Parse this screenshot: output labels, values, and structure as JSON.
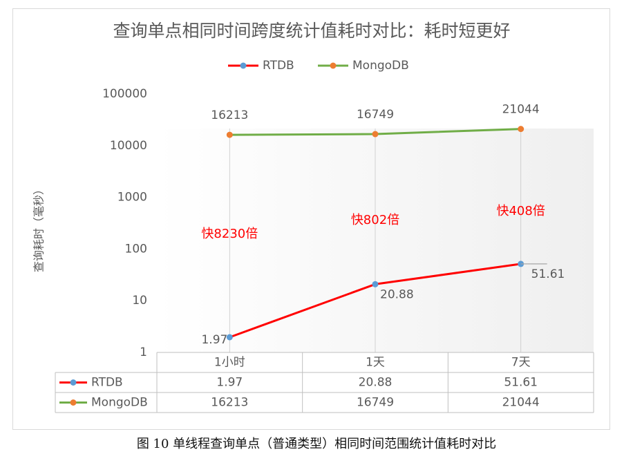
{
  "caption": "图 10 单线程查询单点（普通类型）相同时间范围统计值耗时对比",
  "colors": {
    "rtdb_line": "#ff0000",
    "rtdb_marker": "#5b9bd5",
    "mongo_line": "#70ad47",
    "mongo_marker": "#ed7d31",
    "axis_text": "#595959",
    "annotation": "#ff0000"
  },
  "chart_data": {
    "type": "line",
    "title": "查询单点相同时间跨度统计值耗时对比：耗时短更好",
    "ylabel": "查询耗时（毫秒）",
    "xlabel": "",
    "y_scale": "log",
    "ylim": [
      1,
      100000
    ],
    "yticks": [
      "1",
      "10",
      "100",
      "1000",
      "10000",
      "100000"
    ],
    "grid": "vertical",
    "legend": "top",
    "categories": [
      "1小时",
      "1天",
      "7天"
    ],
    "series": [
      {
        "name": "RTDB",
        "values": [
          1.97,
          20.88,
          51.61
        ],
        "labels": [
          "1.97",
          "20.88",
          "51.61"
        ]
      },
      {
        "name": "MongoDB",
        "values": [
          16213,
          16749,
          21044
        ],
        "labels": [
          "16213",
          "16749",
          "21044"
        ]
      }
    ],
    "annotations": [
      "快8230倍",
      "快802倍",
      "快408倍"
    ],
    "data_table": true
  }
}
